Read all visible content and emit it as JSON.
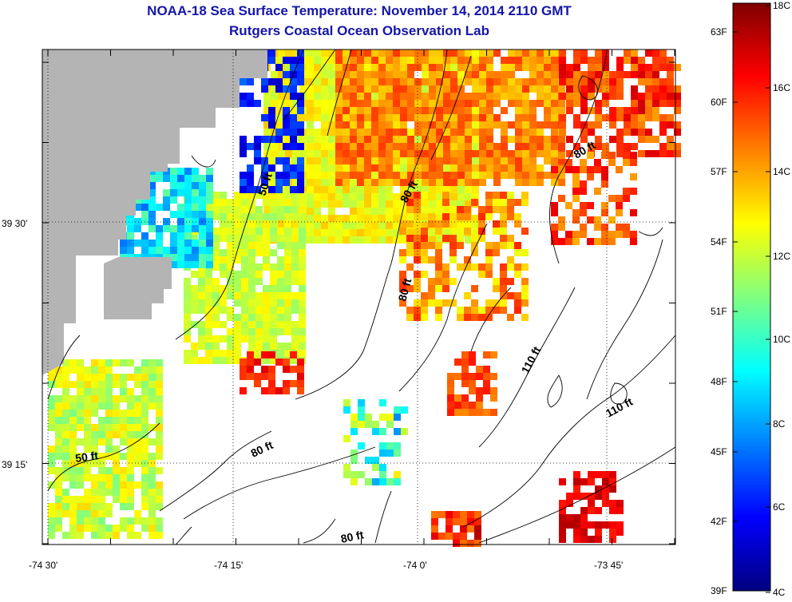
{
  "header": {
    "title": "NOAA-18 Sea Surface Temperature:  November 14, 2014 2110 GMT",
    "subtitle": "Rutgers Coastal Ocean Observation Lab"
  },
  "map": {
    "lon_ticks": [
      "-74 30'",
      "-74 15'",
      "-74 0'",
      "-73 45'"
    ],
    "lat_ticks": [
      "39 30'",
      "39 15'"
    ],
    "depth_labels": [
      "50 ft",
      "50 ft",
      "80 ft",
      "80 ft",
      "80 ft",
      "80 ft",
      "80 ft",
      "110 ft",
      "110 ft"
    ],
    "colors": {
      "land": "#b4b4b4",
      "background": "#ffffff",
      "contour": "#000000"
    }
  },
  "colorbar": {
    "fahrenheit_labels": [
      "63F",
      "60F",
      "57F",
      "54F",
      "51F",
      "48F",
      "45F",
      "42F",
      "39F"
    ],
    "celsius_labels": [
      "18C",
      "16C",
      "14C",
      "12C",
      "10C",
      "8C",
      "6C",
      "4C"
    ],
    "range_c": [
      4,
      18
    ],
    "colormap": "jet"
  }
}
